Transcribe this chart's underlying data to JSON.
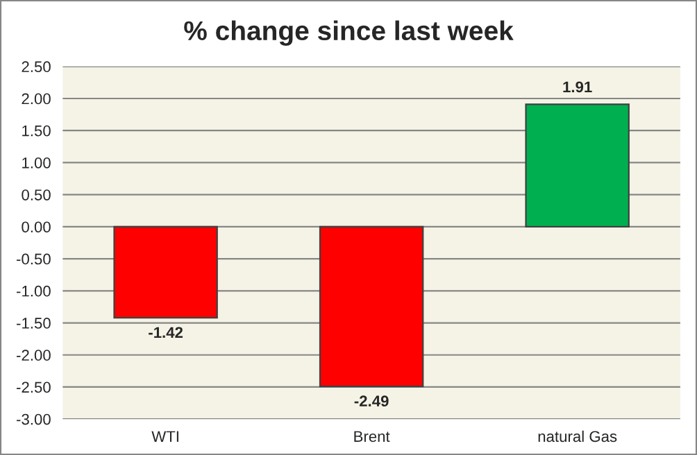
{
  "chart_data": {
    "type": "bar",
    "title": "% change since last week",
    "categories": [
      "WTI",
      "Brent",
      "natural Gas"
    ],
    "values": [
      -1.42,
      -2.49,
      1.91
    ],
    "colors": [
      "#ff0000",
      "#ff0000",
      "#00b050"
    ],
    "ylim": [
      -3.0,
      2.5
    ],
    "yticks": [
      {
        "value": -3.0,
        "label": "-3.00"
      },
      {
        "value": -2.5,
        "label": "-2.50"
      },
      {
        "value": -2.0,
        "label": "-2.00"
      },
      {
        "value": -1.5,
        "label": "-1.50"
      },
      {
        "value": -1.0,
        "label": "-1.00"
      },
      {
        "value": -0.5,
        "label": "-0.50"
      },
      {
        "value": 0.0,
        "label": "0.00"
      },
      {
        "value": 0.5,
        "label": "0.50"
      },
      {
        "value": 1.0,
        "label": "1.00"
      },
      {
        "value": 1.5,
        "label": "1.50"
      },
      {
        "value": 2.0,
        "label": "2.00"
      },
      {
        "value": 2.5,
        "label": "2.50"
      }
    ],
    "grid": "y",
    "data_labels": true
  }
}
